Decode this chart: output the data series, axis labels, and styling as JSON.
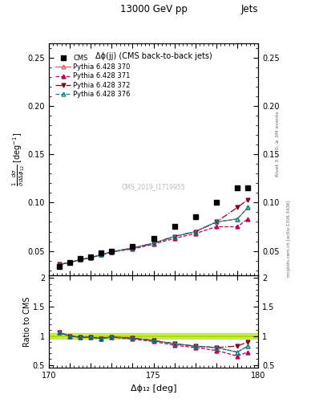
{
  "title_top": "13000 GeV pp",
  "title_right": "Jets",
  "plot_title": "Δϕ(jj) (CMS back-to-back jets)",
  "xlabel": "Δϕ₁₂ [deg]",
  "ylabel_main": "$\\frac{1}{\\bar{\\sigma}}\\frac{d\\sigma}{d\\Delta\\phi_{12}}$ [deg$^{-1}$]",
  "ylabel_ratio": "Ratio to CMS",
  "right_label": "Rivet 3.1.10, ≥ 3M events",
  "right_label2": "mcplots.cern.ch [arXiv:1306.3436]",
  "watermark": "CMS_2019_I1719955",
  "xlim": [
    170,
    180
  ],
  "ylim_main": [
    0.025,
    0.265
  ],
  "ylim_ratio": [
    0.45,
    2.05
  ],
  "xticks": [
    170,
    171,
    172,
    173,
    174,
    175,
    176,
    177,
    178,
    179,
    180
  ],
  "yticks_main": [
    0.05,
    0.1,
    0.15,
    0.2,
    0.25
  ],
  "yticks_ratio": [
    0.5,
    1.0,
    1.5,
    2.0
  ],
  "cms_x": [
    170.5,
    171.0,
    171.5,
    172.0,
    172.5,
    173.0,
    174.0,
    175.0,
    176.0,
    177.0,
    178.0,
    179.0,
    179.5
  ],
  "cms_y": [
    0.034,
    0.038,
    0.042,
    0.044,
    0.048,
    0.05,
    0.055,
    0.063,
    0.075,
    0.085,
    0.1,
    0.115,
    0.115
  ],
  "p370_x": [
    170.5,
    171.0,
    171.5,
    172.0,
    172.5,
    173.0,
    174.0,
    175.0,
    176.0,
    177.0,
    178.0,
    179.0,
    179.5
  ],
  "p370_y": [
    0.036,
    0.038,
    0.041,
    0.043,
    0.046,
    0.049,
    0.053,
    0.058,
    0.065,
    0.07,
    0.08,
    0.083,
    0.095
  ],
  "p371_x": [
    170.5,
    171.0,
    171.5,
    172.0,
    172.5,
    173.0,
    174.0,
    175.0,
    176.0,
    177.0,
    178.0,
    179.0,
    179.5
  ],
  "p371_y": [
    0.036,
    0.038,
    0.041,
    0.043,
    0.046,
    0.049,
    0.052,
    0.057,
    0.063,
    0.068,
    0.075,
    0.075,
    0.083
  ],
  "p372_x": [
    170.5,
    171.0,
    171.5,
    172.0,
    172.5,
    173.0,
    174.0,
    175.0,
    176.0,
    177.0,
    178.0,
    179.0,
    179.5
  ],
  "p372_y": [
    0.036,
    0.038,
    0.041,
    0.043,
    0.046,
    0.049,
    0.053,
    0.058,
    0.065,
    0.07,
    0.08,
    0.095,
    0.103
  ],
  "p376_x": [
    170.5,
    171.0,
    171.5,
    172.0,
    172.5,
    173.0,
    174.0,
    175.0,
    176.0,
    177.0,
    178.0,
    179.0,
    179.5
  ],
  "p376_y": [
    0.036,
    0.038,
    0.041,
    0.043,
    0.046,
    0.049,
    0.053,
    0.058,
    0.065,
    0.07,
    0.08,
    0.083,
    0.095
  ],
  "color_370": "#e06060",
  "color_371": "#bb0055",
  "color_372": "#880020",
  "color_376": "#008888",
  "bg_color": "#ffffff",
  "ratio_band_color": "#aadd00",
  "ratio_band_alpha": 0.6
}
